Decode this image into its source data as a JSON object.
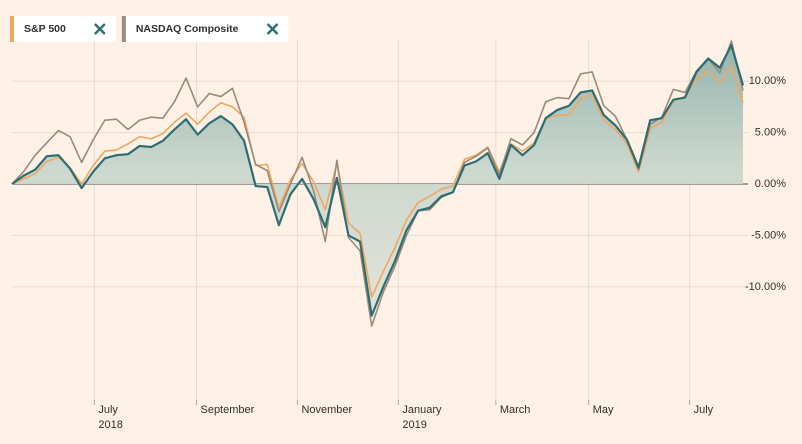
{
  "chart_data": {
    "type": "line",
    "x": [
      0,
      1,
      2,
      3,
      4,
      5,
      6,
      7,
      8,
      9,
      10,
      11,
      12,
      13,
      14,
      15,
      16,
      17,
      18,
      19,
      20,
      21,
      22,
      23,
      24,
      25,
      26,
      27,
      28,
      29,
      30,
      31,
      32,
      33,
      34,
      35,
      36,
      37,
      38,
      39,
      40,
      41,
      42,
      43,
      44,
      45,
      46,
      47,
      48,
      49,
      50,
      51,
      52,
      53,
      54,
      55,
      56,
      57,
      58,
      59,
      60,
      61,
      62,
      63
    ],
    "xlim": [
      0,
      63
    ],
    "xticks": [
      {
        "value": 7.1,
        "label": [
          "July",
          "2018"
        ]
      },
      {
        "value": 15.9,
        "label": [
          "September"
        ]
      },
      {
        "value": 24.6,
        "label": [
          "November"
        ]
      },
      {
        "value": 33.3,
        "label": [
          "January",
          "2019"
        ]
      },
      {
        "value": 41.7,
        "label": [
          "March"
        ]
      },
      {
        "value": 49.7,
        "label": [
          "May"
        ]
      },
      {
        "value": 58.4,
        "label": [
          "July"
        ]
      }
    ],
    "ylim": [
      -21,
      14
    ],
    "yticks": [
      {
        "value": 10,
        "label": "10.00%"
      },
      {
        "value": 5,
        "label": "5.00%"
      },
      {
        "value": 0,
        "label": "0.00%"
      },
      {
        "value": -5,
        "label": "-5.00%"
      },
      {
        "value": -10,
        "label": "-10.00%"
      }
    ],
    "grid": true,
    "series": [
      {
        "color": "#2e6e72",
        "area": true,
        "values": [
          0,
          0.8,
          1.4,
          2.7,
          2.8,
          1.5,
          -0.4,
          1.2,
          2.5,
          2.8,
          2.9,
          3.7,
          3.6,
          4.2,
          5.3,
          6.3,
          4.8,
          5.9,
          6.6,
          5.8,
          4.2,
          -0.2,
          -0.3,
          -4.0,
          -1.0,
          0.5,
          -1.5,
          -4.2,
          0.6,
          -5.0,
          -5.6,
          -12.8,
          -10.0,
          -7.5,
          -4.5,
          -2.6,
          -2.3,
          -1.2,
          -0.8,
          1.8,
          2.2,
          3.0,
          0.5,
          3.8,
          2.8,
          3.8,
          6.4,
          7.2,
          7.6,
          8.9,
          9.1,
          6.7,
          5.7,
          4.3,
          1.6,
          6.2,
          6.4,
          8.2,
          8.4,
          10.9,
          12.2,
          11.3,
          13.5,
          9.6
        ]
      },
      {
        "name": "S&P 500",
        "color": "#eea862",
        "values": [
          0,
          0.5,
          1.0,
          2.2,
          2.6,
          1.6,
          0.0,
          1.8,
          3.2,
          3.3,
          3.9,
          4.6,
          4.4,
          4.9,
          6.0,
          6.9,
          5.8,
          7.0,
          7.9,
          7.5,
          6.5,
          1.8,
          1.9,
          -2.3,
          0.4,
          2.0,
          0.2,
          -2.5,
          2.0,
          -3.8,
          -4.8,
          -11.0,
          -8.5,
          -6.2,
          -3.5,
          -1.8,
          -1.2,
          -0.5,
          -0.2,
          2.4,
          2.8,
          3.6,
          1.2,
          3.9,
          3.2,
          4.0,
          6.4,
          6.7,
          6.7,
          8.3,
          8.7,
          6.2,
          5.3,
          3.9,
          1.2,
          5.4,
          6.0,
          8.1,
          8.5,
          10.3,
          11.0,
          9.8,
          11.5,
          7.9
        ]
      },
      {
        "name": "NASDAQ Composite",
        "color": "#9b8a7a",
        "values": [
          0,
          1.2,
          2.8,
          4.0,
          5.2,
          4.6,
          2.1,
          4.3,
          6.2,
          6.3,
          5.3,
          6.2,
          6.5,
          6.4,
          8.0,
          10.3,
          7.5,
          8.8,
          8.5,
          9.3,
          6.0,
          1.9,
          1.3,
          -2.7,
          0.0,
          2.6,
          -0.7,
          -5.6,
          2.3,
          -5.2,
          -6.5,
          -13.8,
          -10.5,
          -8.0,
          -5.0,
          -2.6,
          -2.5,
          -1.3,
          -0.8,
          2.1,
          2.7,
          3.5,
          0.9,
          4.4,
          3.8,
          5.0,
          8.0,
          8.4,
          8.3,
          10.7,
          10.9,
          7.6,
          6.6,
          4.3,
          1.4,
          5.8,
          6.5,
          9.2,
          8.9,
          11.0,
          12.2,
          10.8,
          13.9,
          9.1
        ]
      }
    ]
  }
}
